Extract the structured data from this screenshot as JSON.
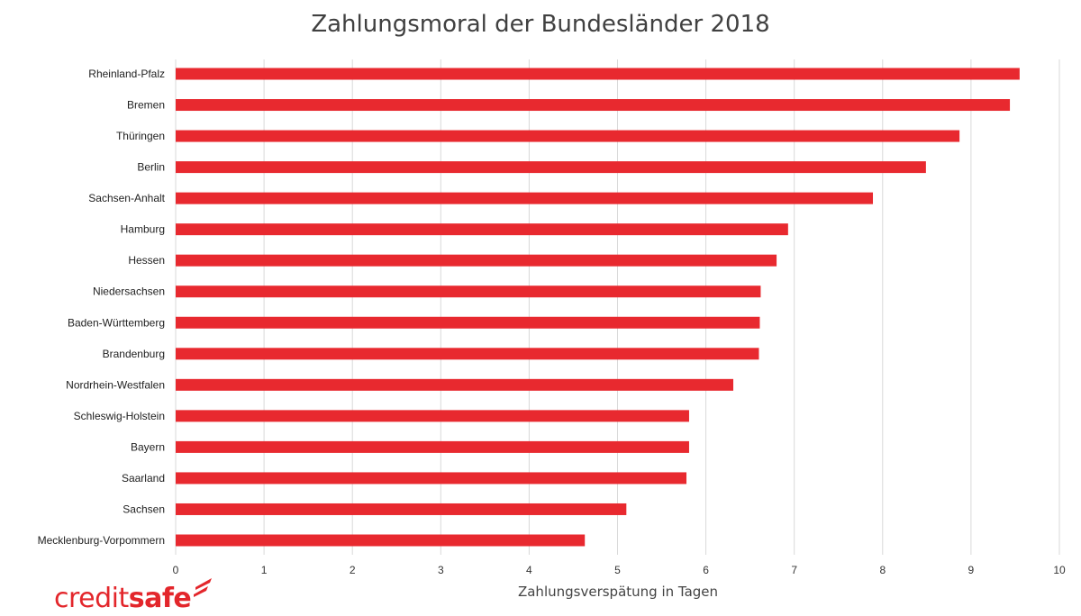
{
  "chart_data": {
    "type": "bar",
    "orientation": "horizontal",
    "title": "Zahlungsmoral der Bundesländer 2018",
    "xlabel": "Zahlungsverspätung in Tagen",
    "ylabel": "",
    "xlim": [
      0,
      10
    ],
    "xticks": [
      0,
      1,
      2,
      3,
      4,
      5,
      6,
      7,
      8,
      9,
      10
    ],
    "grid": true,
    "bar_color": "#e8292f",
    "grid_color": "#d9d9d9",
    "categories": [
      "Rheinland-Pfalz",
      "Bremen",
      "Thüringen",
      "Berlin",
      "Sachsen-Anhalt",
      "Hamburg",
      "Hessen",
      "Niedersachsen",
      "Baden-Württemberg",
      "Brandenburg",
      "Nordrhein-Westfalen",
      "Schleswig-Holstein",
      "Bayern",
      "Saarland",
      "Sachsen",
      "Mecklenburg-Vorpommern"
    ],
    "values": [
      9.55,
      9.44,
      8.87,
      8.49,
      7.89,
      6.93,
      6.8,
      6.62,
      6.61,
      6.6,
      6.31,
      5.81,
      5.81,
      5.78,
      5.1,
      4.63
    ]
  },
  "brand": {
    "logo_part1": "credit",
    "logo_part2": "safe",
    "color": "#e3262b"
  }
}
